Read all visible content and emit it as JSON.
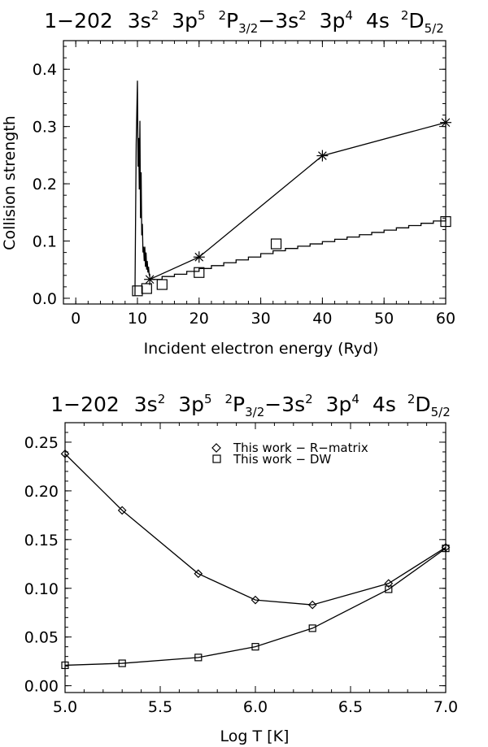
{
  "title_parts": {
    "label": "1−202",
    "lower_config": "3s",
    "lower_config_exp": "2",
    "lower_config_b": "3p",
    "lower_config_b_exp": "5",
    "lower_term_mult": "2",
    "lower_term": "P",
    "lower_term_j": "3/2",
    "dash": "−",
    "upper_config": "3s",
    "upper_config_exp": "2",
    "upper_config_b": "3p",
    "upper_config_b_exp": "4",
    "upper_config_c": "4s",
    "upper_term_mult": "2",
    "upper_term": "D",
    "upper_term_j": "5/2"
  },
  "chart_data": [
    {
      "type": "line",
      "xlabel": "Incident electron energy (Ryd)",
      "ylabel": "Collision strength",
      "xlim": [
        -2,
        60
      ],
      "ylim": [
        -0.01,
        0.45
      ],
      "xticks": [
        0,
        10,
        20,
        30,
        40,
        50,
        60
      ],
      "xtick_labels": [
        "0",
        "10",
        "20",
        "30",
        "40",
        "50",
        "60"
      ],
      "yticks": [
        0.0,
        0.1,
        0.2,
        0.3,
        0.4
      ],
      "ytick_labels": [
        "0.0",
        "0.1",
        "0.2",
        "0.3",
        "0.4"
      ],
      "series": [
        {
          "name": "R-matrix resonance region",
          "style": "line",
          "x": [
            9.6,
            9.8,
            10.0,
            10.1,
            10.2,
            10.3,
            10.4,
            10.5,
            10.6,
            10.7,
            10.8,
            10.9,
            11.0,
            11.1,
            11.2,
            11.3,
            11.4,
            11.5,
            11.6,
            11.7,
            11.8,
            11.9,
            12.0
          ],
          "values": [
            0.005,
            0.27,
            0.38,
            0.23,
            0.28,
            0.19,
            0.31,
            0.14,
            0.22,
            0.11,
            0.13,
            0.08,
            0.09,
            0.065,
            0.09,
            0.055,
            0.08,
            0.05,
            0.065,
            0.045,
            0.055,
            0.042,
            0.038
          ]
        },
        {
          "name": "R-matrix background",
          "style": "step",
          "x": [
            12,
            14,
            16,
            18,
            20,
            22,
            24,
            26,
            28,
            30,
            32,
            34,
            36,
            38,
            40,
            42,
            44,
            46,
            48,
            50,
            52,
            54,
            56,
            58,
            60
          ],
          "values": [
            0.033,
            0.038,
            0.042,
            0.047,
            0.052,
            0.057,
            0.062,
            0.067,
            0.072,
            0.078,
            0.083,
            0.087,
            0.091,
            0.095,
            0.099,
            0.103,
            0.107,
            0.111,
            0.115,
            0.119,
            0.123,
            0.127,
            0.131,
            0.135,
            0.139
          ]
        },
        {
          "name": "Asterisk points",
          "style": "line-marker",
          "marker": "asterisk",
          "x": [
            12,
            20,
            40,
            60
          ],
          "values": [
            0.033,
            0.072,
            0.249,
            0.307
          ]
        },
        {
          "name": "DW squares",
          "style": "marker",
          "marker": "square",
          "x": [
            10,
            11.5,
            14,
            20,
            32.5,
            60
          ],
          "values": [
            0.013,
            0.017,
            0.024,
            0.045,
            0.095,
            0.134
          ]
        }
      ]
    },
    {
      "type": "line",
      "xlabel": "Log T [K]",
      "ylabel": "",
      "xlim": [
        5.0,
        7.0
      ],
      "ylim": [
        -0.007,
        0.27
      ],
      "xticks": [
        5.0,
        5.5,
        6.0,
        6.5,
        7.0
      ],
      "xtick_labels": [
        "5.0",
        "5.5",
        "6.0",
        "6.5",
        "7.0"
      ],
      "yticks": [
        0.0,
        0.05,
        0.1,
        0.15,
        0.2,
        0.25
      ],
      "ytick_labels": [
        "0.00",
        "0.05",
        "0.10",
        "0.15",
        "0.20",
        "0.25"
      ],
      "legend": {
        "position": "top-right",
        "entries": [
          "This work − R−matrix",
          "This work − DW"
        ]
      },
      "series": [
        {
          "name": "This work − R−matrix",
          "marker": "diamond",
          "x": [
            5.0,
            5.3,
            5.7,
            6.0,
            6.3,
            6.7,
            7.0
          ],
          "values": [
            0.238,
            0.18,
            0.115,
            0.088,
            0.083,
            0.105,
            0.142
          ]
        },
        {
          "name": "This work − DW",
          "marker": "square",
          "x": [
            5.0,
            5.3,
            5.7,
            6.0,
            6.3,
            6.7,
            7.0
          ],
          "values": [
            0.021,
            0.023,
            0.029,
            0.04,
            0.059,
            0.099,
            0.141
          ]
        }
      ]
    }
  ]
}
